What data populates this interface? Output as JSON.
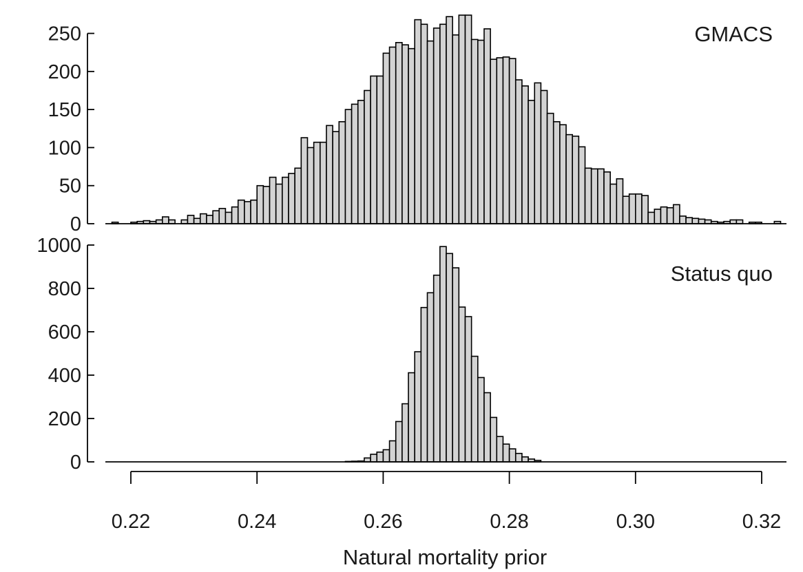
{
  "chart_data": {
    "type": "bar",
    "xlabel": "Natural mortality prior",
    "x_ticks": [
      "0.22",
      "0.24",
      "0.26",
      "0.28",
      "0.30",
      "0.32"
    ],
    "x_tick_values": [
      0.22,
      0.24,
      0.26,
      0.28,
      0.3,
      0.32
    ],
    "xlim": [
      0.216,
      0.3235
    ],
    "bin_width": 0.001,
    "colors": {
      "bar_fill": "#d3d3d3",
      "bar_stroke": "#000000"
    },
    "panels": [
      {
        "label": "GMACS",
        "ylim": [
          0,
          255
        ],
        "y_ticks": [
          "0",
          "50",
          "100",
          "150",
          "200",
          "250"
        ],
        "y_tick_values": [
          0,
          50,
          100,
          150,
          200,
          250
        ],
        "bins": [
          {
            "x": 0.2175,
            "y": 2
          },
          {
            "x": 0.2205,
            "y": 2
          },
          {
            "x": 0.2215,
            "y": 3
          },
          {
            "x": 0.2225,
            "y": 4
          },
          {
            "x": 0.2235,
            "y": 3
          },
          {
            "x": 0.2245,
            "y": 5
          },
          {
            "x": 0.2255,
            "y": 9
          },
          {
            "x": 0.2265,
            "y": 5
          },
          {
            "x": 0.2285,
            "y": 5
          },
          {
            "x": 0.2295,
            "y": 11
          },
          {
            "x": 0.2305,
            "y": 7
          },
          {
            "x": 0.2315,
            "y": 13
          },
          {
            "x": 0.2325,
            "y": 11
          },
          {
            "x": 0.2335,
            "y": 17
          },
          {
            "x": 0.2345,
            "y": 20
          },
          {
            "x": 0.2355,
            "y": 15
          },
          {
            "x": 0.2365,
            "y": 22
          },
          {
            "x": 0.2375,
            "y": 31
          },
          {
            "x": 0.2385,
            "y": 29
          },
          {
            "x": 0.2395,
            "y": 31
          },
          {
            "x": 0.2405,
            "y": 50
          },
          {
            "x": 0.2415,
            "y": 49
          },
          {
            "x": 0.2425,
            "y": 61
          },
          {
            "x": 0.2435,
            "y": 52
          },
          {
            "x": 0.2445,
            "y": 61
          },
          {
            "x": 0.2455,
            "y": 66
          },
          {
            "x": 0.2465,
            "y": 73
          },
          {
            "x": 0.2475,
            "y": 113
          },
          {
            "x": 0.2485,
            "y": 100
          },
          {
            "x": 0.2495,
            "y": 107
          },
          {
            "x": 0.2505,
            "y": 107
          },
          {
            "x": 0.2515,
            "y": 129
          },
          {
            "x": 0.2525,
            "y": 121
          },
          {
            "x": 0.2535,
            "y": 134
          },
          {
            "x": 0.2545,
            "y": 150
          },
          {
            "x": 0.2555,
            "y": 157
          },
          {
            "x": 0.2565,
            "y": 162
          },
          {
            "x": 0.2575,
            "y": 175
          },
          {
            "x": 0.2585,
            "y": 194
          },
          {
            "x": 0.2595,
            "y": 194
          },
          {
            "x": 0.2605,
            "y": 224
          },
          {
            "x": 0.2615,
            "y": 232
          },
          {
            "x": 0.2625,
            "y": 238
          },
          {
            "x": 0.2635,
            "y": 235
          },
          {
            "x": 0.2645,
            "y": 230
          },
          {
            "x": 0.2655,
            "y": 268
          },
          {
            "x": 0.2665,
            "y": 262
          },
          {
            "x": 0.2675,
            "y": 240
          },
          {
            "x": 0.2685,
            "y": 257
          },
          {
            "x": 0.2695,
            "y": 262
          },
          {
            "x": 0.2705,
            "y": 272
          },
          {
            "x": 0.2715,
            "y": 248
          },
          {
            "x": 0.2725,
            "y": 274
          },
          {
            "x": 0.2735,
            "y": 274
          },
          {
            "x": 0.2745,
            "y": 242
          },
          {
            "x": 0.2755,
            "y": 241
          },
          {
            "x": 0.2765,
            "y": 256
          },
          {
            "x": 0.2775,
            "y": 216
          },
          {
            "x": 0.2785,
            "y": 218
          },
          {
            "x": 0.2795,
            "y": 219
          },
          {
            "x": 0.2805,
            "y": 217
          },
          {
            "x": 0.2815,
            "y": 189
          },
          {
            "x": 0.2825,
            "y": 181
          },
          {
            "x": 0.2835,
            "y": 162
          },
          {
            "x": 0.2845,
            "y": 185
          },
          {
            "x": 0.2855,
            "y": 175
          },
          {
            "x": 0.2865,
            "y": 145
          },
          {
            "x": 0.2875,
            "y": 134
          },
          {
            "x": 0.2885,
            "y": 130
          },
          {
            "x": 0.2895,
            "y": 117
          },
          {
            "x": 0.2905,
            "y": 115
          },
          {
            "x": 0.2915,
            "y": 101
          },
          {
            "x": 0.2925,
            "y": 73
          },
          {
            "x": 0.2935,
            "y": 72
          },
          {
            "x": 0.2945,
            "y": 72
          },
          {
            "x": 0.2955,
            "y": 68
          },
          {
            "x": 0.2965,
            "y": 52
          },
          {
            "x": 0.2975,
            "y": 59
          },
          {
            "x": 0.2985,
            "y": 36
          },
          {
            "x": 0.2995,
            "y": 39
          },
          {
            "x": 0.3005,
            "y": 39
          },
          {
            "x": 0.3015,
            "y": 37
          },
          {
            "x": 0.3025,
            "y": 15
          },
          {
            "x": 0.3035,
            "y": 19
          },
          {
            "x": 0.3045,
            "y": 22
          },
          {
            "x": 0.3055,
            "y": 21
          },
          {
            "x": 0.3065,
            "y": 25
          },
          {
            "x": 0.3075,
            "y": 10
          },
          {
            "x": 0.3085,
            "y": 8
          },
          {
            "x": 0.3095,
            "y": 7
          },
          {
            "x": 0.3105,
            "y": 6
          },
          {
            "x": 0.3115,
            "y": 5
          },
          {
            "x": 0.3125,
            "y": 3
          },
          {
            "x": 0.3135,
            "y": 2
          },
          {
            "x": 0.3145,
            "y": 3
          },
          {
            "x": 0.3155,
            "y": 5
          },
          {
            "x": 0.3165,
            "y": 5
          },
          {
            "x": 0.3185,
            "y": 2
          },
          {
            "x": 0.3195,
            "y": 2
          },
          {
            "x": 0.3225,
            "y": 3
          }
        ]
      },
      {
        "label": "Status quo",
        "ylim": [
          0,
          1000
        ],
        "y_ticks": [
          "0",
          "200",
          "400",
          "600",
          "800",
          "1000"
        ],
        "y_tick_values": [
          0,
          200,
          400,
          600,
          800,
          1000
        ],
        "bins": [
          {
            "x": 0.2545,
            "y": 2
          },
          {
            "x": 0.2555,
            "y": 3
          },
          {
            "x": 0.2565,
            "y": 4
          },
          {
            "x": 0.2575,
            "y": 18
          },
          {
            "x": 0.2585,
            "y": 35
          },
          {
            "x": 0.2595,
            "y": 45
          },
          {
            "x": 0.2605,
            "y": 56
          },
          {
            "x": 0.2615,
            "y": 97
          },
          {
            "x": 0.2625,
            "y": 186
          },
          {
            "x": 0.2635,
            "y": 268
          },
          {
            "x": 0.2645,
            "y": 411
          },
          {
            "x": 0.2655,
            "y": 508
          },
          {
            "x": 0.2665,
            "y": 712
          },
          {
            "x": 0.2675,
            "y": 780
          },
          {
            "x": 0.2685,
            "y": 861
          },
          {
            "x": 0.2695,
            "y": 993
          },
          {
            "x": 0.2705,
            "y": 961
          },
          {
            "x": 0.2715,
            "y": 895
          },
          {
            "x": 0.2725,
            "y": 714
          },
          {
            "x": 0.2735,
            "y": 670
          },
          {
            "x": 0.2745,
            "y": 487
          },
          {
            "x": 0.2755,
            "y": 389
          },
          {
            "x": 0.2765,
            "y": 319
          },
          {
            "x": 0.2775,
            "y": 205
          },
          {
            "x": 0.2785,
            "y": 117
          },
          {
            "x": 0.2795,
            "y": 82
          },
          {
            "x": 0.2805,
            "y": 60
          },
          {
            "x": 0.2815,
            "y": 39
          },
          {
            "x": 0.2825,
            "y": 23
          },
          {
            "x": 0.2835,
            "y": 13
          },
          {
            "x": 0.2845,
            "y": 7
          }
        ]
      }
    ]
  }
}
